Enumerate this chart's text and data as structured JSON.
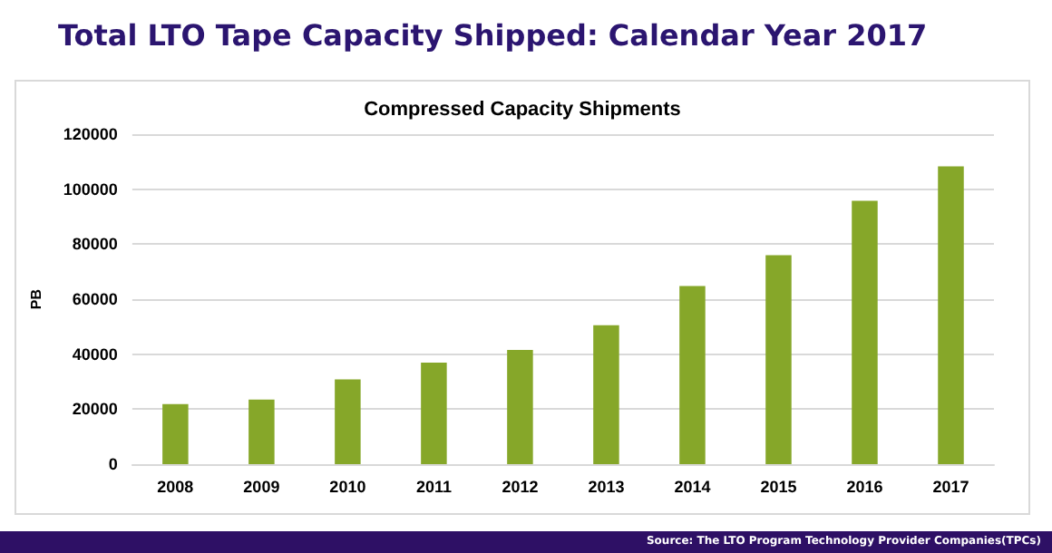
{
  "chart_data": {
    "type": "bar",
    "title": "Total LTO Tape Capacity Shipped: Calendar Year 2017",
    "subtitle": "Compressed Capacity Shipments",
    "ylabel": "PB",
    "categories": [
      "2008",
      "2009",
      "2010",
      "2011",
      "2012",
      "2013",
      "2014",
      "2015",
      "2016",
      "2017"
    ],
    "values": [
      21800,
      23500,
      30800,
      36900,
      41500,
      50500,
      64800,
      76000,
      95800,
      108300
    ],
    "color": "#86a729",
    "ylim": [
      0,
      120000
    ],
    "yticks": [
      0,
      20000,
      40000,
      60000,
      80000,
      100000,
      120000
    ],
    "grid": "y",
    "annotations": [
      "Source: The LTO Program Technology Provider Companies(TPCs)"
    ]
  }
}
